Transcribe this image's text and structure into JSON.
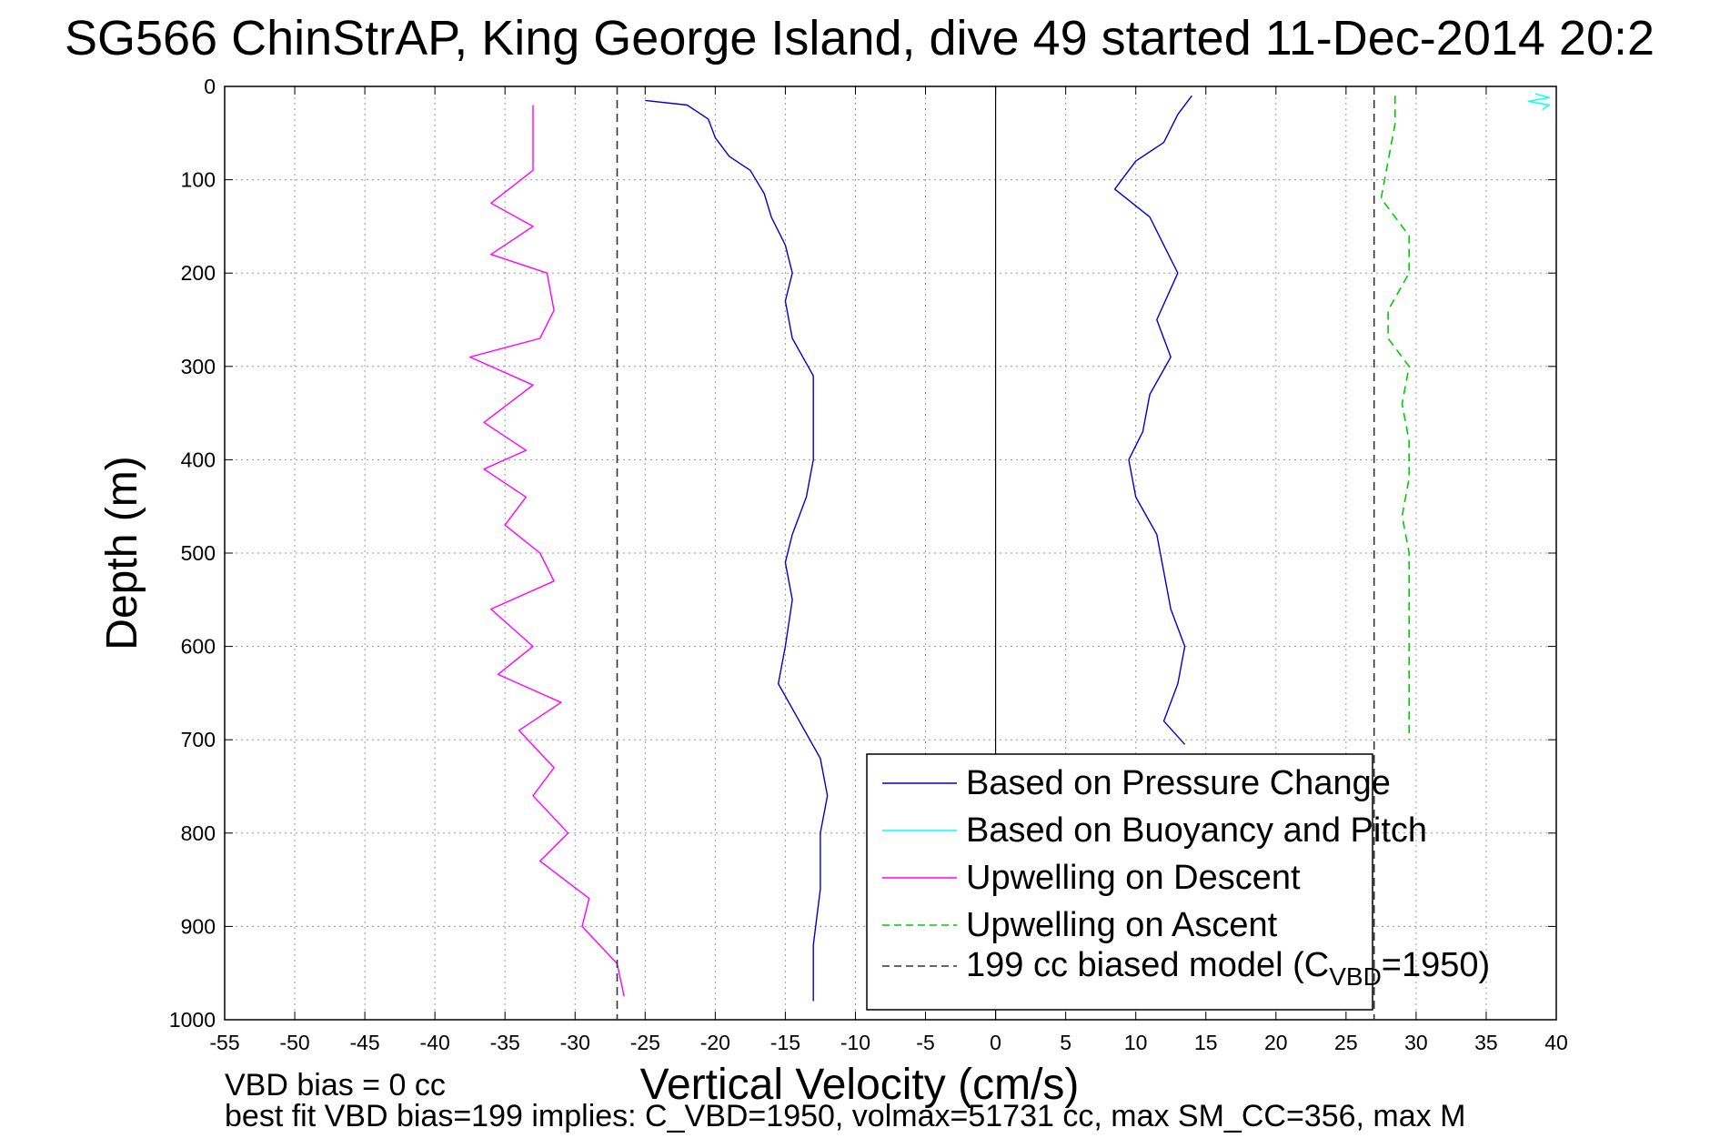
{
  "chart_data": {
    "type": "line",
    "title": "SG566 ChinStrAP, King George Island, dive 49 started 11-Dec-2014 20:2",
    "xlabel": "Vertical Velocity (cm/s)",
    "ylabel": "Depth (m)",
    "xlim": [
      -55,
      40
    ],
    "ylim": [
      0,
      1000
    ],
    "y_reversed": true,
    "x_ticks": [
      -55,
      -50,
      -45,
      -40,
      -35,
      -30,
      -25,
      -20,
      -15,
      -10,
      -5,
      0,
      5,
      10,
      15,
      20,
      25,
      30,
      35,
      40
    ],
    "y_ticks": [
      0,
      100,
      200,
      300,
      400,
      500,
      600,
      700,
      800,
      900,
      1000
    ],
    "grid": true,
    "legend_position": "bottom-right",
    "series": [
      {
        "name": "Based on Pressure Change",
        "color": "#0000cc",
        "style": "solid",
        "points": [
          {
            "x": -25.0,
            "y": 15
          },
          {
            "x": -22.0,
            "y": 20
          },
          {
            "x": -20.5,
            "y": 35
          },
          {
            "x": -20.0,
            "y": 55
          },
          {
            "x": -19.0,
            "y": 75
          },
          {
            "x": -17.5,
            "y": 90
          },
          {
            "x": -16.5,
            "y": 115
          },
          {
            "x": -16.0,
            "y": 140
          },
          {
            "x": -15.0,
            "y": 170
          },
          {
            "x": -14.5,
            "y": 200
          },
          {
            "x": -15.0,
            "y": 230
          },
          {
            "x": -14.5,
            "y": 270
          },
          {
            "x": -13.0,
            "y": 310
          },
          {
            "x": -13.0,
            "y": 350
          },
          {
            "x": -13.0,
            "y": 400
          },
          {
            "x": -13.5,
            "y": 440
          },
          {
            "x": -14.5,
            "y": 480
          },
          {
            "x": -15.0,
            "y": 510
          },
          {
            "x": -14.5,
            "y": 550
          },
          {
            "x": -15.0,
            "y": 600
          },
          {
            "x": -15.5,
            "y": 640
          },
          {
            "x": -14.0,
            "y": 680
          },
          {
            "x": -12.5,
            "y": 720
          },
          {
            "x": -12.0,
            "y": 760
          },
          {
            "x": -12.5,
            "y": 800
          },
          {
            "x": -12.5,
            "y": 860
          },
          {
            "x": -13.0,
            "y": 920
          },
          {
            "x": -13.0,
            "y": 980
          }
        ]
      },
      {
        "name": "Based on Pressure Change",
        "color": "#0000cc",
        "style": "solid",
        "points": [
          {
            "x": 14.0,
            "y": 10
          },
          {
            "x": 13.0,
            "y": 30
          },
          {
            "x": 12.0,
            "y": 60
          },
          {
            "x": 10.0,
            "y": 80
          },
          {
            "x": 8.5,
            "y": 110
          },
          {
            "x": 11.0,
            "y": 140
          },
          {
            "x": 12.0,
            "y": 170
          },
          {
            "x": 13.0,
            "y": 200
          },
          {
            "x": 11.5,
            "y": 250
          },
          {
            "x": 12.5,
            "y": 290
          },
          {
            "x": 11.0,
            "y": 330
          },
          {
            "x": 10.5,
            "y": 370
          },
          {
            "x": 9.5,
            "y": 400
          },
          {
            "x": 10.0,
            "y": 440
          },
          {
            "x": 11.5,
            "y": 480
          },
          {
            "x": 12.0,
            "y": 520
          },
          {
            "x": 12.5,
            "y": 560
          },
          {
            "x": 13.5,
            "y": 600
          },
          {
            "x": 13.0,
            "y": 640
          },
          {
            "x": 12.0,
            "y": 680
          },
          {
            "x": 13.5,
            "y": 705
          }
        ]
      },
      {
        "name": "Upwelling on Descent",
        "color": "#ff00ff",
        "style": "solid",
        "points": [
          {
            "x": -33.0,
            "y": 20
          },
          {
            "x": -33.0,
            "y": 50
          },
          {
            "x": -33.0,
            "y": 90
          },
          {
            "x": -36.0,
            "y": 125
          },
          {
            "x": -33.0,
            "y": 150
          },
          {
            "x": -36.0,
            "y": 180
          },
          {
            "x": -32.0,
            "y": 200
          },
          {
            "x": -31.5,
            "y": 240
          },
          {
            "x": -32.5,
            "y": 270
          },
          {
            "x": -37.5,
            "y": 290
          },
          {
            "x": -33.0,
            "y": 320
          },
          {
            "x": -36.5,
            "y": 360
          },
          {
            "x": -33.5,
            "y": 390
          },
          {
            "x": -36.5,
            "y": 410
          },
          {
            "x": -33.5,
            "y": 440
          },
          {
            "x": -35.0,
            "y": 470
          },
          {
            "x": -32.5,
            "y": 500
          },
          {
            "x": -31.5,
            "y": 530
          },
          {
            "x": -36.0,
            "y": 560
          },
          {
            "x": -33.0,
            "y": 600
          },
          {
            "x": -35.5,
            "y": 630
          },
          {
            "x": -31.0,
            "y": 660
          },
          {
            "x": -34.0,
            "y": 690
          },
          {
            "x": -31.5,
            "y": 730
          },
          {
            "x": -33.0,
            "y": 760
          },
          {
            "x": -30.5,
            "y": 800
          },
          {
            "x": -32.5,
            "y": 830
          },
          {
            "x": -29.0,
            "y": 870
          },
          {
            "x": -29.5,
            "y": 900
          },
          {
            "x": -27.0,
            "y": 940
          },
          {
            "x": -26.5,
            "y": 975
          }
        ]
      },
      {
        "name": "Upwelling on Ascent",
        "color": "#00cc00",
        "style": "dashed",
        "points": [
          {
            "x": 28.5,
            "y": 10
          },
          {
            "x": 28.5,
            "y": 40
          },
          {
            "x": 28.0,
            "y": 80
          },
          {
            "x": 27.5,
            "y": 120
          },
          {
            "x": 29.5,
            "y": 160
          },
          {
            "x": 29.5,
            "y": 200
          },
          {
            "x": 28.0,
            "y": 240
          },
          {
            "x": 28.0,
            "y": 270
          },
          {
            "x": 29.5,
            "y": 300
          },
          {
            "x": 29.0,
            "y": 340
          },
          {
            "x": 29.5,
            "y": 380
          },
          {
            "x": 29.5,
            "y": 420
          },
          {
            "x": 29.0,
            "y": 460
          },
          {
            "x": 29.5,
            "y": 500
          },
          {
            "x": 29.5,
            "y": 540
          },
          {
            "x": 29.5,
            "y": 580
          },
          {
            "x": 29.5,
            "y": 620
          },
          {
            "x": 29.5,
            "y": 660
          },
          {
            "x": 29.5,
            "y": 700
          }
        ]
      },
      {
        "name": "Based on Buoyancy and Pitch",
        "color": "#00ffff",
        "style": "solid",
        "points": [
          {
            "x": 38.5,
            "y": 8
          },
          {
            "x": 39.5,
            "y": 12
          },
          {
            "x": 38.0,
            "y": 16
          },
          {
            "x": 39.5,
            "y": 20
          },
          {
            "x": 39.0,
            "y": 25
          }
        ]
      },
      {
        "name": "199 cc biased model (C_VBD=1950)",
        "color": "#333333",
        "style": "dashed",
        "points": [
          {
            "x": -27,
            "y": 0
          },
          {
            "x": -27,
            "y": 1000
          }
        ]
      },
      {
        "name": "199 cc biased model (C_VBD=1950)",
        "color": "#333333",
        "style": "dashed",
        "points": [
          {
            "x": 27,
            "y": 0
          },
          {
            "x": 27,
            "y": 1000
          }
        ]
      }
    ]
  },
  "legend": {
    "items": [
      {
        "label": "Based on Pressure Change",
        "color": "#0000cc",
        "style": "solid"
      },
      {
        "label": "Based on Buoyancy and Pitch",
        "color": "#00ffff",
        "style": "solid"
      },
      {
        "label": "Upwelling on Descent",
        "color": "#ff00ff",
        "style": "solid"
      },
      {
        "label": "Upwelling on Ascent",
        "color": "#00cc00",
        "style": "dashed"
      }
    ],
    "model_prefix": "199 cc biased model (C",
    "model_subscript": "VBD",
    "model_suffix": "=1950)",
    "model_color": "#333333"
  },
  "notes": {
    "bias_line": "VBD bias = 0 cc",
    "fit_line": "best fit VBD bias=199 implies: C_VBD=1950, volmax=51731 cc, max SM_CC=356, max M"
  }
}
